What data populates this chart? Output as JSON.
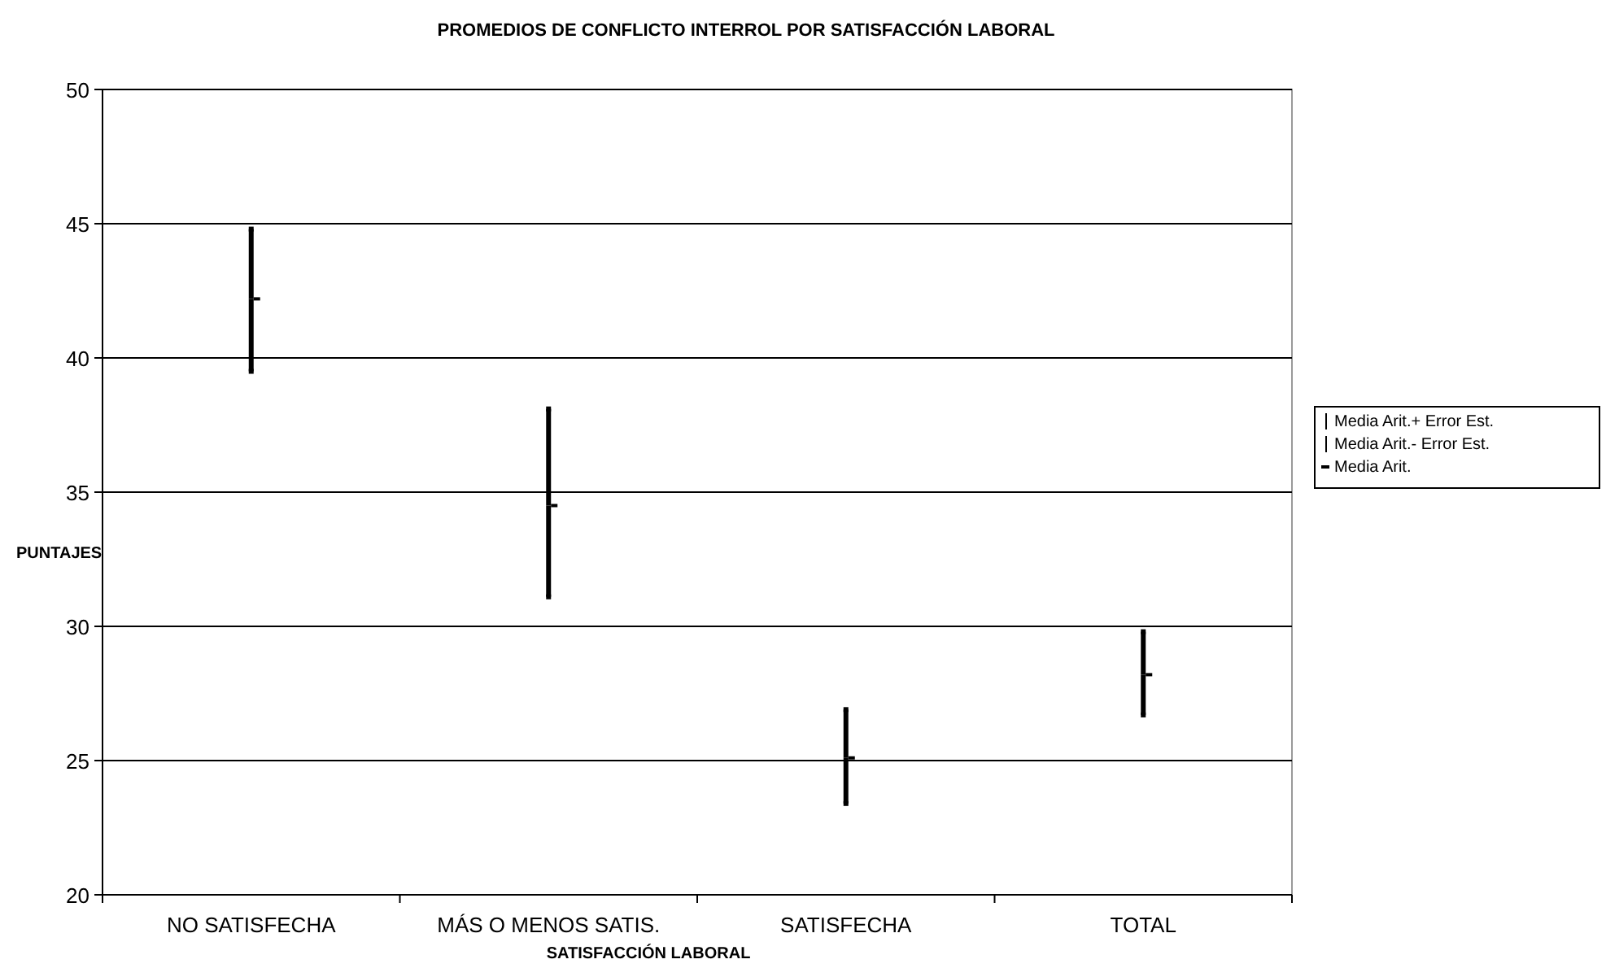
{
  "chart_data": {
    "type": "scatter",
    "title": "PROMEDIOS DE CONFLICTO INTERROL POR SATISFACCIÓN LABORAL",
    "xlabel": "SATISFACCIÓN LABORAL",
    "ylabel": "PUNTAJES",
    "categories": [
      "NO SATISFECHA",
      "MÁS O MENOS SATIS.",
      "SATISFECHA",
      "TOTAL"
    ],
    "series": [
      {
        "name": "Media Arit.+ Error Est.",
        "color": "#000000",
        "values": [
          44.8,
          38.1,
          26.9,
          29.8
        ]
      },
      {
        "name": "Media Arit.- Error Est.",
        "color": "#000000",
        "values": [
          39.5,
          31.1,
          23.4,
          26.7
        ]
      },
      {
        "name": "Media Arit.",
        "color": "#000000",
        "values": [
          42.2,
          34.5,
          25.1,
          28.2
        ]
      }
    ],
    "ylim": [
      20,
      50
    ],
    "yticks": [
      20,
      25,
      30,
      35,
      40,
      45,
      50
    ],
    "grid": "y",
    "legend": "right"
  }
}
